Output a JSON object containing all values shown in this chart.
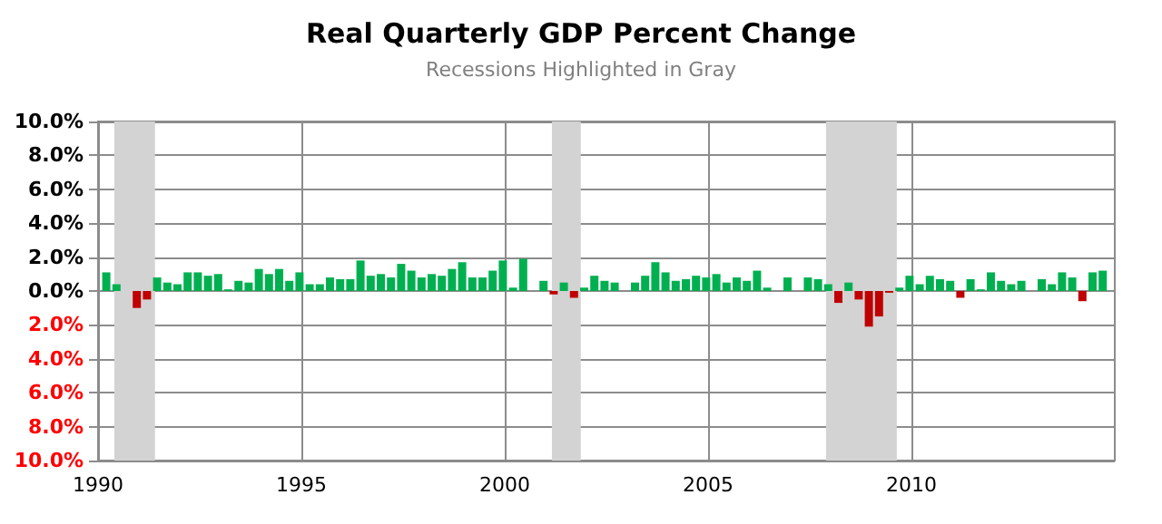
{
  "chart_data": {
    "type": "bar",
    "title": "Real Quarterly GDP Percent Change",
    "subtitle": "Recessions Highlighted in Gray",
    "x": [
      1990.125,
      1990.375,
      1990.625,
      1990.875,
      1991.125,
      1991.375,
      1991.625,
      1991.875,
      1992.125,
      1992.375,
      1992.625,
      1992.875,
      1993.125,
      1993.375,
      1993.625,
      1993.875,
      1994.125,
      1994.375,
      1994.625,
      1994.875,
      1995.125,
      1995.375,
      1995.625,
      1995.875,
      1996.125,
      1996.375,
      1996.625,
      1996.875,
      1997.125,
      1997.375,
      1997.625,
      1997.875,
      1998.125,
      1998.375,
      1998.625,
      1998.875,
      1999.125,
      1999.375,
      1999.625,
      1999.875,
      2000.125,
      2000.375,
      2000.625,
      2000.875,
      2001.125,
      2001.375,
      2001.625,
      2001.875,
      2002.125,
      2002.375,
      2002.625,
      2002.875,
      2003.125,
      2003.375,
      2003.625,
      2003.875,
      2004.125,
      2004.375,
      2004.625,
      2004.875,
      2005.125,
      2005.375,
      2005.625,
      2005.875,
      2006.125,
      2006.375,
      2006.625,
      2006.875,
      2007.125,
      2007.375,
      2007.625,
      2007.875,
      2008.125,
      2008.375,
      2008.625,
      2008.875,
      2009.125,
      2009.375,
      2009.625,
      2009.875,
      2010.125,
      2010.375,
      2010.625,
      2010.875,
      2011.125,
      2011.375,
      2011.625,
      2011.875,
      2012.125,
      2012.375,
      2012.625,
      2012.875,
      2013.125,
      2013.375,
      2013.625,
      2013.875,
      2014.125,
      2014.375,
      2014.625
    ],
    "series": [
      {
        "color": "#00b050",
        "values": [
          1.1,
          0.4,
          0,
          null,
          null,
          0.8,
          0.5,
          0.4,
          1.1,
          1.1,
          0.9,
          1.0,
          0.1,
          0.6,
          0.5,
          1.3,
          1.0,
          1.3,
          0.6,
          1.1,
          0.4,
          0.4,
          0.8,
          0.7,
          0.7,
          1.8,
          0.9,
          1.0,
          0.8,
          1.6,
          1.2,
          0.8,
          1.0,
          0.9,
          1.3,
          1.7,
          0.8,
          0.8,
          1.2,
          1.8,
          0.2,
          1.9,
          0,
          0.6,
          null,
          0.5,
          null,
          0.2,
          0.9,
          0.6,
          0.5,
          0,
          0.5,
          0.9,
          1.7,
          1.1,
          0.6,
          0.7,
          0.9,
          0.8,
          1.0,
          0.5,
          0.8,
          0.6,
          1.2,
          0.2,
          0,
          0.8,
          0,
          0.8,
          0.7,
          0.4,
          null,
          0.5,
          null,
          null,
          null,
          null,
          0.2,
          0.9,
          0.4,
          0.9,
          0.7,
          0.6,
          null,
          0.7,
          0.1,
          1.1,
          0.6,
          0.4,
          0.6,
          0,
          0.7,
          0.4,
          1.1,
          0.8,
          null,
          1.1,
          1.2
        ]
      },
      {
        "color": "#c00000",
        "values": [
          null,
          null,
          null,
          -1.0,
          -0.5,
          null,
          null,
          null,
          null,
          null,
          null,
          null,
          null,
          null,
          null,
          null,
          null,
          null,
          null,
          null,
          null,
          null,
          null,
          null,
          null,
          null,
          null,
          null,
          null,
          null,
          null,
          null,
          null,
          null,
          null,
          null,
          null,
          null,
          null,
          null,
          null,
          null,
          null,
          null,
          -0.2,
          null,
          -0.4,
          null,
          null,
          null,
          null,
          null,
          null,
          null,
          null,
          null,
          null,
          null,
          null,
          null,
          null,
          null,
          null,
          null,
          null,
          null,
          null,
          null,
          null,
          null,
          null,
          null,
          -0.7,
          null,
          -0.5,
          -2.1,
          -1.5,
          -0.1,
          null,
          null,
          null,
          null,
          null,
          null,
          -0.4,
          null,
          null,
          null,
          null,
          null,
          null,
          null,
          null,
          null,
          null,
          null,
          -0.6,
          null,
          null
        ]
      }
    ],
    "xlim": [
      1990,
      2015
    ],
    "xticks": [
      1990,
      1995,
      2000,
      2005,
      2010
    ],
    "ylim": [
      -10,
      10
    ],
    "yticks": [
      {
        "value": -10,
        "label": "10.0%"
      },
      {
        "value": -8,
        "label": "8.0%"
      },
      {
        "value": -6,
        "label": "6.0%"
      },
      {
        "value": -4,
        "label": "4.0%"
      },
      {
        "value": -2,
        "label": "2.0%"
      },
      {
        "value": 0,
        "label": "0.0%"
      },
      {
        "value": 2,
        "label": "2.0%"
      },
      {
        "value": 4,
        "label": "4.0%"
      },
      {
        "value": 6,
        "label": "6.0%"
      },
      {
        "value": 8,
        "label": "8.0%"
      },
      {
        "value": 10,
        "label": "10.0%"
      }
    ],
    "bands": [
      {
        "axis": "x",
        "from": 1990.4,
        "to": 1991.4,
        "color": "#d3d3d3"
      },
      {
        "axis": "x",
        "from": 2001.16,
        "to": 2001.87,
        "color": "#d3d3d3"
      },
      {
        "axis": "x",
        "from": 2007.9,
        "to": 2009.64,
        "color": "#d3d3d3"
      }
    ],
    "grid": true
  }
}
